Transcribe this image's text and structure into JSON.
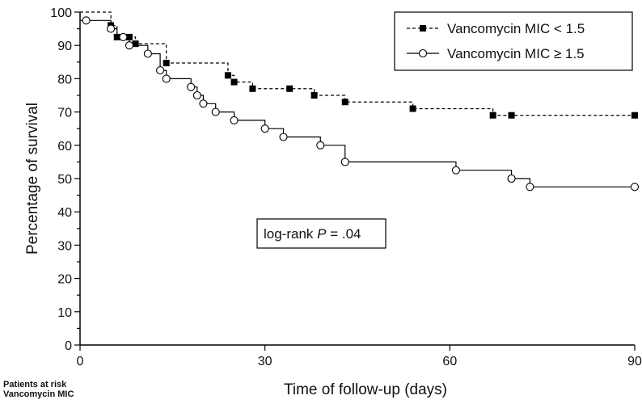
{
  "chart_data": {
    "type": "line",
    "subtype": "kaplan-meier",
    "title": "",
    "xlabel": "Time of follow-up (days)",
    "ylabel": "Percentage of survival",
    "xlim": [
      0,
      90
    ],
    "ylim": [
      0,
      100
    ],
    "x_ticks": [
      0,
      30,
      60,
      90
    ],
    "y_ticks": [
      0,
      5,
      10,
      15,
      20,
      25,
      30,
      35,
      40,
      45,
      50,
      55,
      60,
      65,
      70,
      75,
      80,
      85,
      90,
      95,
      100
    ],
    "y_tick_labels": [
      0,
      10,
      20,
      30,
      40,
      50,
      60,
      70,
      80,
      90,
      100
    ],
    "grid": false,
    "legend_position": "top-right",
    "series": [
      {
        "name": "Vancomycin MIC < 1.5",
        "style": "dashed",
        "marker": "filled-square",
        "color": "#000000",
        "steps": [
          [
            0,
            100
          ],
          [
            5,
            96
          ],
          [
            6,
            92.5
          ],
          [
            8,
            92.5
          ],
          [
            9,
            90.5
          ],
          [
            14,
            84.7
          ],
          [
            24,
            81
          ],
          [
            25,
            79
          ],
          [
            28,
            77
          ],
          [
            34,
            77
          ],
          [
            38,
            75
          ],
          [
            43,
            73
          ],
          [
            54,
            71
          ],
          [
            67,
            69
          ],
          [
            70,
            69
          ],
          [
            90,
            69
          ]
        ],
        "censored": [
          [
            5,
            96
          ],
          [
            6,
            92.5
          ],
          [
            8,
            92.5
          ],
          [
            9,
            90.5
          ],
          [
            14,
            84.7
          ],
          [
            24,
            81
          ],
          [
            25,
            79
          ],
          [
            28,
            77
          ],
          [
            34,
            77
          ],
          [
            38,
            75
          ],
          [
            43,
            73
          ],
          [
            54,
            71
          ],
          [
            67,
            69
          ],
          [
            70,
            69
          ],
          [
            90,
            69
          ]
        ]
      },
      {
        "name": "Vancomycin MIC ≥ 1.5",
        "style": "solid",
        "marker": "open-circle",
        "color": "#000000",
        "steps": [
          [
            0,
            97.5
          ],
          [
            5,
            95
          ],
          [
            6,
            92.5
          ],
          [
            7,
            92.5
          ],
          [
            8,
            90
          ],
          [
            11,
            87.5
          ],
          [
            13,
            82.5
          ],
          [
            14,
            80
          ],
          [
            18,
            77.5
          ],
          [
            19,
            75
          ],
          [
            20,
            72.5
          ],
          [
            22,
            70
          ],
          [
            25,
            67.5
          ],
          [
            30,
            65
          ],
          [
            33,
            62.5
          ],
          [
            39,
            60
          ],
          [
            43,
            55
          ],
          [
            61,
            52.5
          ],
          [
            70,
            50
          ],
          [
            73,
            47.5
          ],
          [
            90,
            47.5
          ]
        ],
        "censored": [
          [
            1,
            97.5
          ],
          [
            5,
            95
          ],
          [
            7,
            92.5
          ],
          [
            8,
            90
          ],
          [
            11,
            87.5
          ],
          [
            13,
            82.5
          ],
          [
            14,
            80
          ],
          [
            18,
            77.5
          ],
          [
            19,
            75
          ],
          [
            20,
            72.5
          ],
          [
            22,
            70
          ],
          [
            25,
            67.5
          ],
          [
            30,
            65
          ],
          [
            33,
            62.5
          ],
          [
            39,
            60
          ],
          [
            43,
            55
          ],
          [
            61,
            52.5
          ],
          [
            70,
            50
          ],
          [
            73,
            47.5
          ],
          [
            90,
            47.5
          ]
        ]
      }
    ],
    "annotation": {
      "prefix": "log-rank ",
      "italic": "P",
      "suffix": " = .04"
    }
  },
  "footnote": {
    "line1": "Patients at risk",
    "line2": "Vancomycin MIC"
  }
}
